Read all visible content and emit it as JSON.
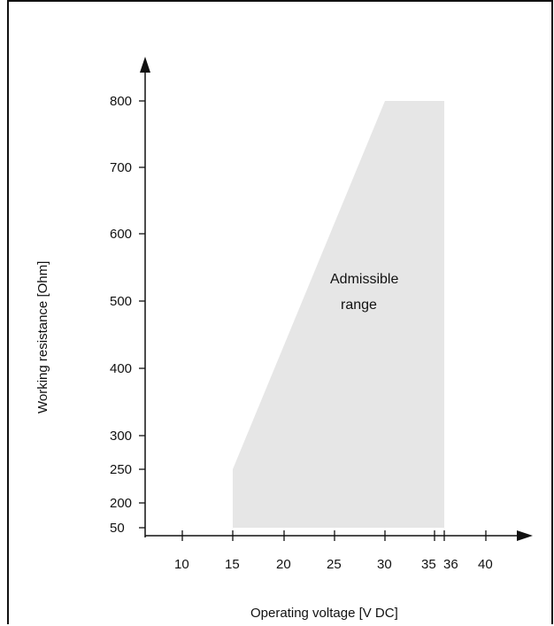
{
  "chart_data": {
    "type": "area",
    "xlabel": "Operating voltage  [V DC]",
    "ylabel": "Working resistance  [Ohm]",
    "x_ticks": [
      10,
      15,
      20,
      25,
      30,
      35,
      36,
      40
    ],
    "y_ticks": [
      50,
      200,
      250,
      300,
      400,
      500,
      600,
      700,
      800
    ],
    "region": {
      "name": "Admissible range",
      "annotation": [
        "Admissible",
        "range"
      ],
      "polygon": [
        {
          "x": 15,
          "y": 50
        },
        {
          "x": 15,
          "y": 250
        },
        {
          "x": 30,
          "y": 800
        },
        {
          "x": 36,
          "y": 800
        },
        {
          "x": 36,
          "y": 50
        }
      ]
    },
    "colors": {
      "region": "#e6e6e6",
      "axis": "#111111"
    },
    "grid": false
  }
}
